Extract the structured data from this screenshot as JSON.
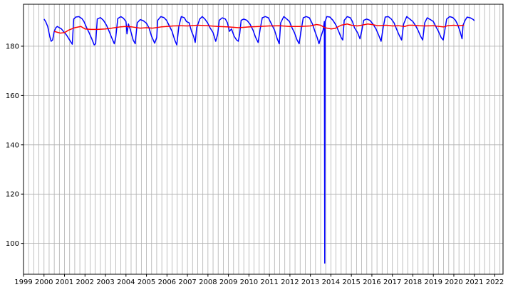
{
  "chart_data": {
    "type": "line",
    "title": "",
    "xlabel": "",
    "ylabel": "",
    "xlim": [
      1999.0,
      2022.4
    ],
    "ylim": [
      87.5,
      197.0
    ],
    "grid": true,
    "minor_grid_x": "quarterly",
    "x_ticks": [
      "1999",
      "2000",
      "2001",
      "2002",
      "2003",
      "2004",
      "2005",
      "2006",
      "2007",
      "2008",
      "2009",
      "2010",
      "2011",
      "2012",
      "2013",
      "2014",
      "2015",
      "2016",
      "2017",
      "2018",
      "2019",
      "2020",
      "2021",
      "2022"
    ],
    "y_ticks": [
      100,
      120,
      140,
      160,
      180
    ],
    "series": [
      {
        "color": "#0000ff",
        "values": [
          [
            2000.0,
            191.0
          ],
          [
            2000.08,
            190.0
          ],
          [
            2000.18,
            188.0
          ],
          [
            2000.28,
            184.0
          ],
          [
            2000.35,
            182.0
          ],
          [
            2000.42,
            182.5
          ],
          [
            2000.5,
            186.0
          ],
          [
            2000.58,
            187.5
          ],
          [
            2000.65,
            188.0
          ],
          [
            2000.75,
            187.5
          ],
          [
            2000.85,
            187.0
          ],
          [
            2000.95,
            186.0
          ],
          [
            2001.1,
            184.5
          ],
          [
            2001.25,
            182.5
          ],
          [
            2001.38,
            180.8
          ],
          [
            2001.45,
            191.0
          ],
          [
            2001.55,
            191.8
          ],
          [
            2001.7,
            192.0
          ],
          [
            2001.85,
            191.2
          ],
          [
            2001.95,
            190.0
          ],
          [
            2002.08,
            187.5
          ],
          [
            2002.2,
            185.5
          ],
          [
            2002.33,
            183.0
          ],
          [
            2002.45,
            180.5
          ],
          [
            2002.52,
            181.0
          ],
          [
            2002.6,
            191.0
          ],
          [
            2002.75,
            191.6
          ],
          [
            2002.9,
            190.5
          ],
          [
            2003.05,
            188.5
          ],
          [
            2003.18,
            186.0
          ],
          [
            2003.3,
            183.5
          ],
          [
            2003.43,
            181.0
          ],
          [
            2003.5,
            183.5
          ],
          [
            2003.6,
            191.2
          ],
          [
            2003.75,
            192.0
          ],
          [
            2003.88,
            191.3
          ],
          [
            2004.0,
            190.0
          ],
          [
            2004.05,
            185.0
          ],
          [
            2004.12,
            189.0
          ],
          [
            2004.22,
            186.5
          ],
          [
            2004.35,
            182.5
          ],
          [
            2004.45,
            181.0
          ],
          [
            2004.55,
            189.5
          ],
          [
            2004.7,
            190.8
          ],
          [
            2004.85,
            190.3
          ],
          [
            2005.0,
            189.3
          ],
          [
            2005.12,
            187.5
          ],
          [
            2005.25,
            184.0
          ],
          [
            2005.4,
            181.2
          ],
          [
            2005.5,
            183.5
          ],
          [
            2005.55,
            190.5
          ],
          [
            2005.7,
            192.0
          ],
          [
            2005.85,
            191.6
          ],
          [
            2005.98,
            190.5
          ],
          [
            2006.1,
            188.5
          ],
          [
            2006.25,
            186.0
          ],
          [
            2006.38,
            182.5
          ],
          [
            2006.48,
            180.5
          ],
          [
            2006.58,
            188.0
          ],
          [
            2006.7,
            192.0
          ],
          [
            2006.85,
            191.5
          ],
          [
            2006.95,
            190.0
          ],
          [
            2007.08,
            189.5
          ],
          [
            2007.2,
            186.0
          ],
          [
            2007.3,
            184.0
          ],
          [
            2007.38,
            181.5
          ],
          [
            2007.45,
            187.5
          ],
          [
            2007.6,
            191.0
          ],
          [
            2007.72,
            192.0
          ],
          [
            2007.85,
            191.0
          ],
          [
            2007.98,
            189.5
          ],
          [
            2008.1,
            187.5
          ],
          [
            2008.25,
            185.5
          ],
          [
            2008.38,
            182.0
          ],
          [
            2008.48,
            185.0
          ],
          [
            2008.55,
            190.5
          ],
          [
            2008.7,
            191.5
          ],
          [
            2008.85,
            191.0
          ],
          [
            2008.95,
            189.5
          ],
          [
            2009.05,
            186.0
          ],
          [
            2009.15,
            187.0
          ],
          [
            2009.28,
            184.0
          ],
          [
            2009.4,
            182.5
          ],
          [
            2009.48,
            182.0
          ],
          [
            2009.55,
            185.0
          ],
          [
            2009.62,
            190.5
          ],
          [
            2009.75,
            191.0
          ],
          [
            2009.9,
            190.5
          ],
          [
            2010.05,
            189.0
          ],
          [
            2010.2,
            186.5
          ],
          [
            2010.33,
            183.5
          ],
          [
            2010.45,
            181.5
          ],
          [
            2010.55,
            187.0
          ],
          [
            2010.65,
            191.5
          ],
          [
            2010.8,
            192.0
          ],
          [
            2010.95,
            191.5
          ],
          [
            2011.1,
            189.0
          ],
          [
            2011.25,
            186.5
          ],
          [
            2011.38,
            183.0
          ],
          [
            2011.48,
            181.0
          ],
          [
            2011.55,
            189.5
          ],
          [
            2011.7,
            192.0
          ],
          [
            2011.85,
            191.0
          ],
          [
            2011.98,
            190.0
          ],
          [
            2012.1,
            187.5
          ],
          [
            2012.22,
            185.5
          ],
          [
            2012.35,
            182.5
          ],
          [
            2012.45,
            181.0
          ],
          [
            2012.55,
            186.5
          ],
          [
            2012.65,
            191.5
          ],
          [
            2012.8,
            192.0
          ],
          [
            2012.95,
            191.5
          ],
          [
            2013.1,
            189.0
          ],
          [
            2013.22,
            186.0
          ],
          [
            2013.33,
            183.5
          ],
          [
            2013.42,
            181.0
          ],
          [
            2013.52,
            184.0
          ],
          [
            2013.62,
            186.5
          ],
          [
            2013.68,
            190.0
          ],
          [
            2013.7,
            92.0
          ],
          [
            2013.72,
            190.0
          ],
          [
            2013.8,
            192.0
          ],
          [
            2013.95,
            191.8
          ],
          [
            2014.1,
            190.5
          ],
          [
            2014.25,
            188.5
          ],
          [
            2014.38,
            186.0
          ],
          [
            2014.5,
            183.5
          ],
          [
            2014.58,
            182.5
          ],
          [
            2014.65,
            190.5
          ],
          [
            2014.8,
            192.0
          ],
          [
            2014.95,
            191.5
          ],
          [
            2015.05,
            190.0
          ],
          [
            2015.15,
            187.5
          ],
          [
            2015.3,
            185.5
          ],
          [
            2015.42,
            183.0
          ],
          [
            2015.5,
            186.0
          ],
          [
            2015.6,
            190.5
          ],
          [
            2015.75,
            191.0
          ],
          [
            2015.9,
            190.5
          ],
          [
            2016.05,
            189.0
          ],
          [
            2016.2,
            187.0
          ],
          [
            2016.33,
            184.5
          ],
          [
            2016.45,
            182.0
          ],
          [
            2016.55,
            187.5
          ],
          [
            2016.65,
            191.8
          ],
          [
            2016.8,
            192.0
          ],
          [
            2016.95,
            191.0
          ],
          [
            2017.08,
            189.5
          ],
          [
            2017.2,
            187.0
          ],
          [
            2017.33,
            184.5
          ],
          [
            2017.45,
            182.5
          ],
          [
            2017.55,
            189.0
          ],
          [
            2017.7,
            192.0
          ],
          [
            2017.85,
            191.0
          ],
          [
            2018.0,
            190.0
          ],
          [
            2018.12,
            188.5
          ],
          [
            2018.25,
            186.5
          ],
          [
            2018.38,
            184.0
          ],
          [
            2018.48,
            182.5
          ],
          [
            2018.58,
            189.5
          ],
          [
            2018.7,
            191.5
          ],
          [
            2018.85,
            190.8
          ],
          [
            2019.0,
            190.0
          ],
          [
            2019.12,
            188.0
          ],
          [
            2019.25,
            186.0
          ],
          [
            2019.38,
            183.5
          ],
          [
            2019.48,
            182.5
          ],
          [
            2019.55,
            186.0
          ],
          [
            2019.65,
            191.0
          ],
          [
            2019.8,
            192.0
          ],
          [
            2019.95,
            191.6
          ],
          [
            2020.08,
            190.5
          ],
          [
            2020.2,
            188.5
          ],
          [
            2020.32,
            185.5
          ],
          [
            2020.4,
            183.0
          ],
          [
            2020.45,
            188.5
          ],
          [
            2020.55,
            190.5
          ],
          [
            2020.65,
            191.8
          ],
          [
            2020.8,
            191.5
          ],
          [
            2020.95,
            190.8
          ],
          [
            2021.0,
            190.3
          ]
        ]
      },
      {
        "color": "#ff0000",
        "values": [
          [
            2000.5,
            186.0
          ],
          [
            2000.8,
            185.3
          ],
          [
            2001.0,
            185.5
          ],
          [
            2001.2,
            186.5
          ],
          [
            2001.5,
            187.5
          ],
          [
            2001.8,
            188.0
          ],
          [
            2002.0,
            187.0
          ],
          [
            2002.3,
            186.8
          ],
          [
            2002.6,
            186.8
          ],
          [
            2003.0,
            187.0
          ],
          [
            2003.3,
            187.3
          ],
          [
            2003.7,
            187.8
          ],
          [
            2004.0,
            188.0
          ],
          [
            2004.3,
            187.8
          ],
          [
            2004.7,
            187.3
          ],
          [
            2005.0,
            187.5
          ],
          [
            2005.3,
            187.3
          ],
          [
            2005.7,
            187.8
          ],
          [
            2006.0,
            188.0
          ],
          [
            2006.3,
            188.2
          ],
          [
            2006.7,
            188.3
          ],
          [
            2007.0,
            188.2
          ],
          [
            2007.5,
            188.5
          ],
          [
            2008.0,
            188.3
          ],
          [
            2008.5,
            188.0
          ],
          [
            2009.0,
            187.8
          ],
          [
            2009.5,
            187.5
          ],
          [
            2010.0,
            187.8
          ],
          [
            2010.5,
            188.0
          ],
          [
            2011.0,
            188.2
          ],
          [
            2011.5,
            188.3
          ],
          [
            2012.0,
            188.0
          ],
          [
            2012.5,
            188.0
          ],
          [
            2013.0,
            188.2
          ],
          [
            2013.3,
            188.8
          ],
          [
            2013.5,
            188.5
          ],
          [
            2013.7,
            187.5
          ],
          [
            2014.0,
            187.0
          ],
          [
            2014.2,
            187.2
          ],
          [
            2014.5,
            188.5
          ],
          [
            2014.8,
            189.0
          ],
          [
            2015.0,
            188.5
          ],
          [
            2015.3,
            188.2
          ],
          [
            2015.5,
            188.5
          ],
          [
            2015.8,
            189.0
          ],
          [
            2016.0,
            188.8
          ],
          [
            2016.3,
            188.3
          ],
          [
            2016.7,
            188.5
          ],
          [
            2017.0,
            188.2
          ],
          [
            2017.3,
            188.3
          ],
          [
            2017.6,
            188.0
          ],
          [
            2017.8,
            188.5
          ],
          [
            2018.0,
            188.5
          ],
          [
            2018.3,
            188.3
          ],
          [
            2018.6,
            188.2
          ],
          [
            2019.0,
            188.3
          ],
          [
            2019.3,
            188.0
          ],
          [
            2019.5,
            187.8
          ],
          [
            2019.7,
            188.3
          ],
          [
            2020.0,
            188.5
          ],
          [
            2020.2,
            188.3
          ],
          [
            2020.5,
            188.5
          ]
        ]
      }
    ]
  }
}
